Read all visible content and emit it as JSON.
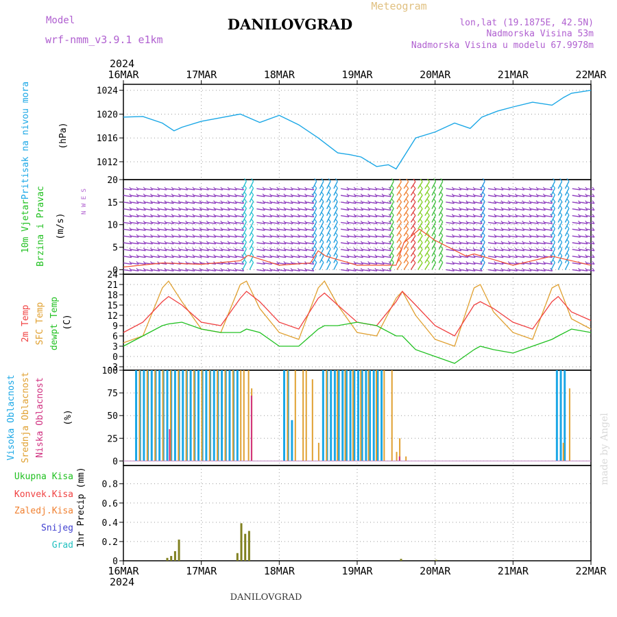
{
  "header": {
    "model_label": "Model",
    "model_name": "wrf-nmm_v3.9.1 e1km",
    "title": "DANILOVGRAD",
    "subtitle": "Meteogram",
    "lonlat": "lon,lat (19.1875E, 42.5N)",
    "elevation": "Nadmorska Visina 53m",
    "model_elevation": "Nadmorska Visina u modelu 67.9978m",
    "year_top": "2024",
    "year_bottom": "2024",
    "footer": "DANILOVGRAD",
    "watermark": "made by Angel"
  },
  "colors": {
    "pressure": "#1aa7e6",
    "temp2m": "#f04040",
    "sfc": "#e0a030",
    "dew": "#20c020",
    "high": "#1aa7e6",
    "mid": "#e0a030",
    "low": "#d03080",
    "precip": "#808020",
    "wind": "#9040c0"
  },
  "chart_data": [
    {
      "type": "line",
      "panel": "pressure",
      "ylabel_lines": [
        "Pritisak na nivou mora"
      ],
      "unit": "(hPa)",
      "x_ticks": [
        "16MAR",
        "17MAR",
        "18MAR",
        "19MAR",
        "20MAR",
        "21MAR",
        "22MAR"
      ],
      "ylim": [
        1009,
        1025
      ],
      "yticks": [
        1012,
        1016,
        1020,
        1024
      ],
      "x_days": [
        0,
        0.25,
        0.5,
        0.65,
        0.75,
        1.0,
        1.25,
        1.5,
        1.75,
        2.0,
        2.25,
        2.5,
        2.75,
        2.9,
        3.05,
        3.25,
        3.4,
        3.5,
        3.75,
        4.0,
        4.25,
        4.45,
        4.6,
        4.8,
        5.0,
        5.25,
        5.5,
        5.65,
        5.75,
        6.0
      ],
      "series": [
        {
          "values": [
            1019.5,
            1019.6,
            1018.5,
            1017.2,
            1017.8,
            1018.8,
            1019.4,
            1020.0,
            1018.6,
            1019.8,
            1018.2,
            1016.0,
            1013.5,
            1013.2,
            1012.8,
            1011.2,
            1011.5,
            1010.8,
            1016.0,
            1017.0,
            1018.5,
            1017.6,
            1019.5,
            1020.5,
            1021.2,
            1022.0,
            1021.5,
            1022.8,
            1023.5,
            1024.0
          ]
        }
      ]
    },
    {
      "type": "line",
      "panel": "wind",
      "ylabel_lines": [
        "10m Vjetar",
        "Brzina i Pravac"
      ],
      "unit": "(m/s)",
      "legend_compass": "N W E S",
      "ylim": [
        -1,
        20
      ],
      "yticks": [
        0,
        5,
        10,
        15,
        20
      ],
      "x_days": [
        0,
        0.5,
        1.0,
        1.5,
        1.6,
        2.0,
        2.4,
        2.5,
        2.6,
        3.0,
        3.5,
        3.6,
        3.8,
        4.0,
        4.4,
        4.5,
        5.0,
        5.5,
        6.0
      ],
      "series": [
        {
          "name": "speed",
          "values": [
            0.6,
            1.5,
            1.2,
            2.0,
            3.2,
            1.0,
            1.5,
            4.2,
            3.0,
            1.0,
            1.0,
            6.0,
            9.0,
            6.5,
            3.0,
            3.5,
            1.0,
            3.0,
            1.0
          ]
        }
      ]
    },
    {
      "type": "line",
      "panel": "temperature",
      "ylabel_lines": [
        "2m Temp",
        "SFC Temp",
        "dewpt Temp"
      ],
      "unit": "(C)",
      "ylim": [
        -4,
        24
      ],
      "yticks": [
        -3,
        0,
        3,
        6,
        9,
        12,
        15,
        18,
        21,
        24
      ],
      "x_days": [
        0,
        0.25,
        0.5,
        0.58,
        0.75,
        1.0,
        1.25,
        1.5,
        1.58,
        1.75,
        2.0,
        2.25,
        2.5,
        2.58,
        2.75,
        3.0,
        3.25,
        3.5,
        3.58,
        3.75,
        4.0,
        4.25,
        4.5,
        4.58,
        4.75,
        5.0,
        5.25,
        5.5,
        5.58,
        5.75,
        6.0
      ],
      "series": [
        {
          "name": "2m Temp",
          "values": [
            7,
            10,
            16,
            17.5,
            15,
            10,
            9,
            17,
            19,
            16,
            10,
            8,
            17,
            18.5,
            15,
            10,
            9,
            16,
            19,
            15,
            9,
            6,
            15,
            16,
            14,
            10,
            8,
            16,
            17.5,
            13,
            10.5
          ]
        },
        {
          "name": "SFC Temp",
          "values": [
            4,
            6,
            20,
            22,
            16,
            8,
            7,
            21,
            22,
            14,
            7,
            5,
            20,
            22,
            15,
            7,
            6,
            17,
            19,
            12,
            5,
            3,
            20,
            21,
            13,
            7,
            5,
            20,
            21,
            11,
            8
          ]
        },
        {
          "name": "dewpt Temp",
          "values": [
            3,
            6,
            9,
            9.5,
            10,
            8,
            7,
            7,
            8,
            7,
            3,
            3,
            8,
            9,
            9,
            10,
            9,
            6,
            6,
            2,
            0,
            -2,
            2,
            3,
            2,
            1,
            3,
            5,
            6,
            8,
            7
          ]
        }
      ]
    },
    {
      "type": "bar",
      "panel": "cloud",
      "ylabel_lines": [
        "Visoka Oblacnost",
        "Srednja Oblacnost",
        "Niska Oblacnost"
      ],
      "unit": "(%)",
      "ylim": [
        -5,
        100
      ],
      "yticks": [
        0,
        25,
        50,
        75,
        100
      ],
      "series": [
        {
          "name": "Visoka Oblacnost",
          "x_days": [
            0.15,
            0.2,
            0.25,
            0.3,
            0.35,
            0.4,
            0.45,
            0.5,
            0.55,
            0.6,
            0.65,
            0.7,
            0.75,
            0.8,
            0.85,
            0.9,
            0.95,
            1.0,
            1.05,
            1.1,
            1.15,
            1.2,
            1.25,
            1.3,
            1.35,
            1.4,
            1.45,
            2.05,
            2.1,
            2.15,
            2.55,
            2.6,
            2.65,
            2.7,
            2.75,
            2.8,
            2.85,
            2.9,
            2.95,
            3.0,
            3.05,
            3.1,
            3.15,
            3.2,
            3.25,
            3.3,
            5.55,
            5.6,
            5.65
          ],
          "values": [
            100,
            100,
            100,
            100,
            100,
            100,
            100,
            100,
            100,
            100,
            100,
            100,
            100,
            100,
            100,
            100,
            100,
            100,
            100,
            100,
            100,
            100,
            100,
            100,
            100,
            100,
            100,
            100,
            100,
            45,
            100,
            100,
            100,
            100,
            100,
            100,
            100,
            100,
            100,
            100,
            100,
            100,
            100,
            100,
            100,
            100,
            100,
            100,
            100
          ]
        },
        {
          "name": "Srednja Oblacnost",
          "x_days": [
            0.18,
            0.28,
            0.38,
            0.48,
            0.58,
            0.68,
            0.78,
            0.88,
            0.98,
            1.08,
            1.18,
            1.28,
            1.38,
            1.48,
            1.52,
            1.58,
            1.62,
            2.08,
            2.18,
            2.28,
            2.32,
            2.4,
            2.48,
            2.58,
            2.72,
            2.82,
            2.92,
            3.02,
            3.12,
            3.22,
            3.32,
            3.42,
            3.48,
            3.52,
            3.6,
            5.62,
            5.7
          ],
          "values": [
            100,
            100,
            100,
            100,
            100,
            100,
            100,
            100,
            100,
            100,
            100,
            100,
            100,
            100,
            100,
            100,
            80,
            100,
            100,
            100,
            100,
            90,
            20,
            100,
            100,
            100,
            100,
            100,
            100,
            100,
            100,
            100,
            10,
            25,
            5,
            20,
            80
          ]
        },
        {
          "name": "Niska Oblacnost",
          "x_days": [
            0.55,
            1.6,
            3.5
          ],
          "values": [
            35,
            72,
            5
          ]
        }
      ]
    },
    {
      "type": "bar",
      "panel": "precip",
      "ylabel_lines": [
        "1hr Precip (mm)"
      ],
      "legend": [
        "Ukupna Kisa",
        "Konvek.Kisa",
        "Zaledj.Kisa",
        "Snijeg",
        "Grad"
      ],
      "ylim": [
        0,
        0.99
      ],
      "yticks": [
        0,
        0.2,
        0.4,
        0.6,
        0.8
      ],
      "x_days": [
        0.55,
        0.6,
        0.65,
        0.7,
        1.45,
        1.5,
        1.55,
        1.6,
        3.55,
        4.0
      ],
      "values": [
        0.03,
        0.05,
        0.1,
        0.22,
        0.08,
        0.39,
        0.28,
        0.31,
        0.02,
        0.01
      ]
    }
  ]
}
